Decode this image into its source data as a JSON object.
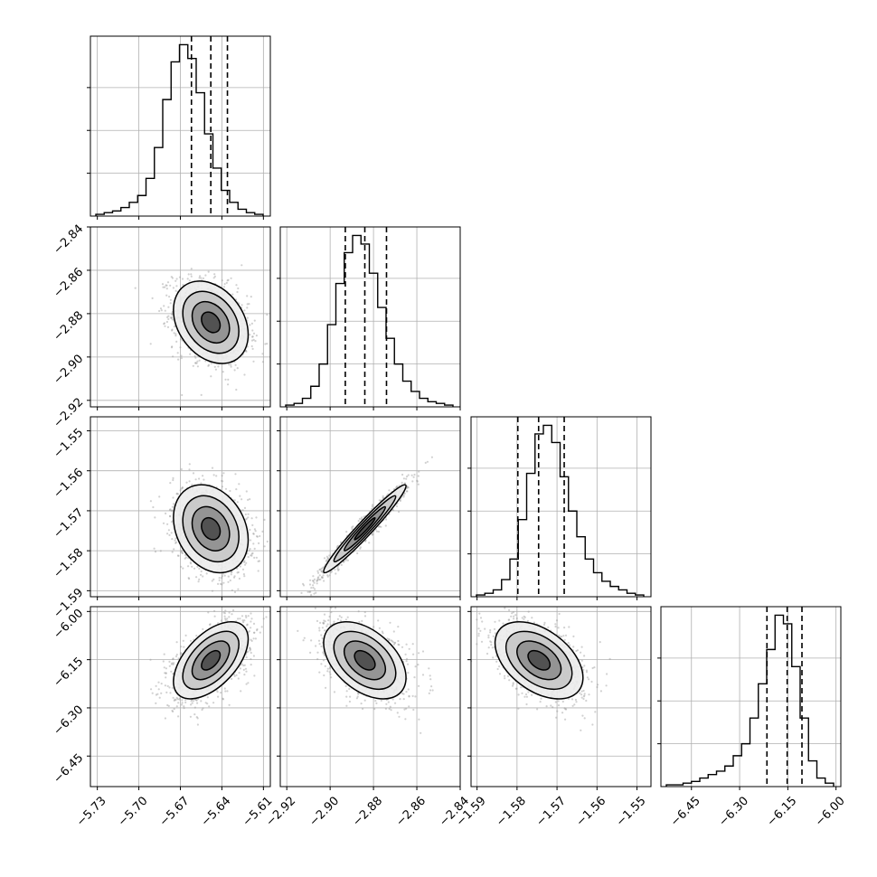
{
  "chart_data": {
    "type": "scatter",
    "subtype": "corner-plot",
    "title": "",
    "grid": true,
    "legend": "none",
    "quantiles": [
      0.16,
      0.5,
      0.84
    ],
    "levels": [
      0.118,
      0.393,
      0.675,
      0.865
    ],
    "parameters": [
      {
        "range": [
          -5.735,
          -5.605
        ],
        "ticks": [
          -5.73,
          -5.7,
          -5.67,
          -5.64,
          -5.61
        ],
        "tick_labels": [
          "−5.73",
          "−5.70",
          "−5.67",
          "−5.64",
          "−5.61"
        ],
        "quantile_values": [
          -5.662,
          -5.648,
          -5.636
        ]
      },
      {
        "range": [
          -2.923,
          -2.84
        ],
        "ticks": [
          -2.92,
          -2.9,
          -2.88,
          -2.86,
          -2.84
        ],
        "tick_labels": [
          "−2.92",
          "−2.90",
          "−2.88",
          "−2.86",
          "−2.84"
        ],
        "quantile_values": [
          -2.893,
          -2.884,
          -2.874
        ]
      },
      {
        "range": [
          -1.5915,
          -1.5465
        ],
        "ticks": [
          -1.59,
          -1.58,
          -1.57,
          -1.56,
          -1.55
        ],
        "tick_labels": [
          "−1.59",
          "−1.58",
          "−1.57",
          "−1.56",
          "−1.55"
        ],
        "quantile_values": [
          -1.5798,
          -1.5746,
          -1.5682
        ]
      },
      {
        "range": [
          -6.545,
          -5.985
        ],
        "ticks": [
          -6.45,
          -6.3,
          -6.15,
          -6.0
        ],
        "tick_labels": [
          "−6.45",
          "−6.30",
          "−6.15",
          "−6.00"
        ],
        "quantile_values": [
          -6.215,
          -6.152,
          -6.106
        ]
      }
    ],
    "marginal_histograms": [
      {
        "parameter": 0,
        "bins": 20,
        "counts": [
          1,
          2,
          3,
          5,
          8,
          12,
          22,
          40,
          68,
          90,
          100,
          92,
          72,
          48,
          28,
          15,
          8,
          4,
          2,
          1
        ]
      },
      {
        "parameter": 1,
        "bins": 20,
        "counts": [
          1,
          2,
          5,
          12,
          25,
          48,
          72,
          90,
          100,
          95,
          78,
          58,
          40,
          25,
          15,
          9,
          5,
          3,
          2,
          1
        ]
      },
      {
        "parameter": 2,
        "bins": 20,
        "counts": [
          1,
          2,
          4,
          10,
          22,
          45,
          72,
          95,
          100,
          90,
          70,
          50,
          35,
          22,
          14,
          9,
          6,
          4,
          2,
          1
        ]
      },
      {
        "parameter": 3,
        "bins": 20,
        "counts": [
          1,
          1,
          2,
          3,
          5,
          7,
          9,
          12,
          18,
          25,
          40,
          60,
          80,
          100,
          95,
          70,
          40,
          15,
          5,
          2
        ]
      }
    ],
    "joint_distributions": [
      {
        "x": 0,
        "y": 1,
        "mean": [
          -5.648,
          -2.884
        ],
        "sd": [
          0.0135,
          0.0095
        ],
        "correlation": -0.3
      },
      {
        "x": 0,
        "y": 2,
        "mean": [
          -5.648,
          -1.5745
        ],
        "sd": [
          0.0135,
          0.0055
        ],
        "correlation": -0.25
      },
      {
        "x": 1,
        "y": 2,
        "mean": [
          -2.884,
          -1.5745
        ],
        "sd": [
          0.0095,
          0.0055
        ],
        "correlation": 0.97
      },
      {
        "x": 0,
        "y": 3,
        "mean": [
          -5.648,
          -6.152
        ],
        "sd": [
          0.0135,
          0.06
        ],
        "correlation": 0.55
      },
      {
        "x": 1,
        "y": 3,
        "mean": [
          -2.884,
          -6.152
        ],
        "sd": [
          0.0095,
          0.06
        ],
        "correlation": -0.45
      },
      {
        "x": 2,
        "y": 3,
        "mean": [
          -1.5745,
          -6.152
        ],
        "sd": [
          0.0055,
          0.06
        ],
        "correlation": -0.45
      }
    ]
  }
}
